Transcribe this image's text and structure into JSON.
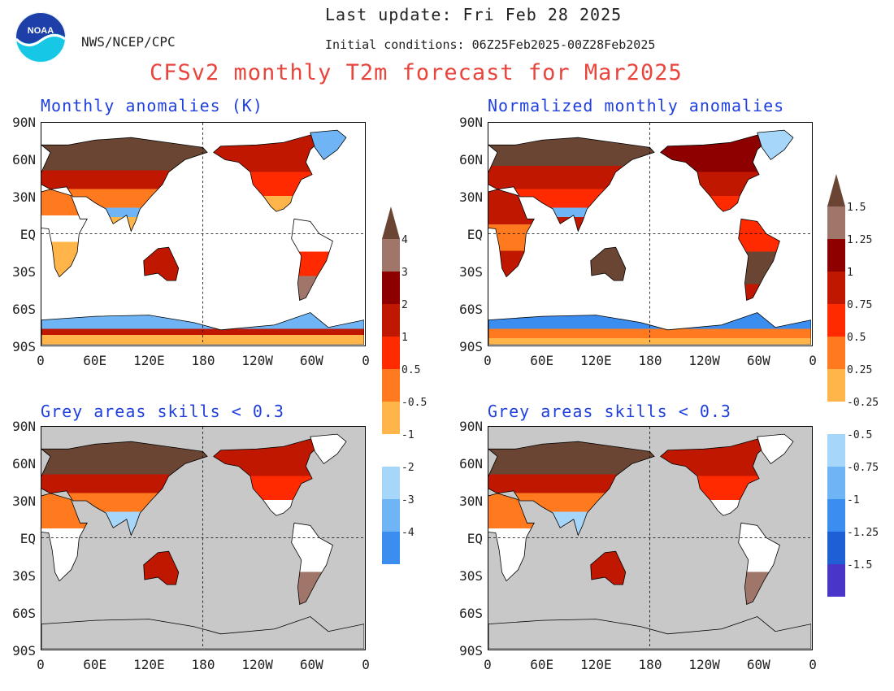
{
  "header": {
    "agency": "NWS/NCEP/CPC",
    "logo_text": "NOAA",
    "last_update": "Last update: Fri Feb 28 2025",
    "initial_conditions": "Initial conditions: 06Z25Feb2025-00Z28Feb2025",
    "main_title": "CFSv2 monthly T2m forecast for Mar2025"
  },
  "panels": {
    "top_left_title": "Monthly anomalies (K)",
    "top_right_title": "Normalized monthly anomalies",
    "bottom_left_title": "Grey areas skills < 0.3",
    "bottom_right_title": "Grey areas skills < 0.3"
  },
  "axes": {
    "lat_labels": [
      "90N",
      "60N",
      "30N",
      "EQ",
      "30S",
      "60S",
      "90S"
    ],
    "lon_labels": [
      "0",
      "60E",
      "120E",
      "180",
      "120W",
      "60W",
      "0"
    ]
  },
  "colorbars": {
    "left_labels": [
      "4",
      "3",
      "2",
      "1",
      "0.5",
      "-0.5",
      "-1",
      "-2",
      "-3",
      "-4"
    ],
    "right_labels": [
      "1.5",
      "1.25",
      "1",
      "0.75",
      "0.5",
      "0.25",
      "-0.25",
      "-0.5",
      "-0.75",
      "-1",
      "-1.25",
      "-1.5"
    ],
    "colors": [
      "#1c0f9e",
      "#4936c9",
      "#1e5fd6",
      "#3b8ef0",
      "#6fb5f5",
      "#a6d6fa",
      "#ffffff",
      "#ffb54a",
      "#ff7a1f",
      "#ff2a00",
      "#c01800",
      "#8e0000",
      "#a0766a",
      "#6b4533"
    ]
  }
}
